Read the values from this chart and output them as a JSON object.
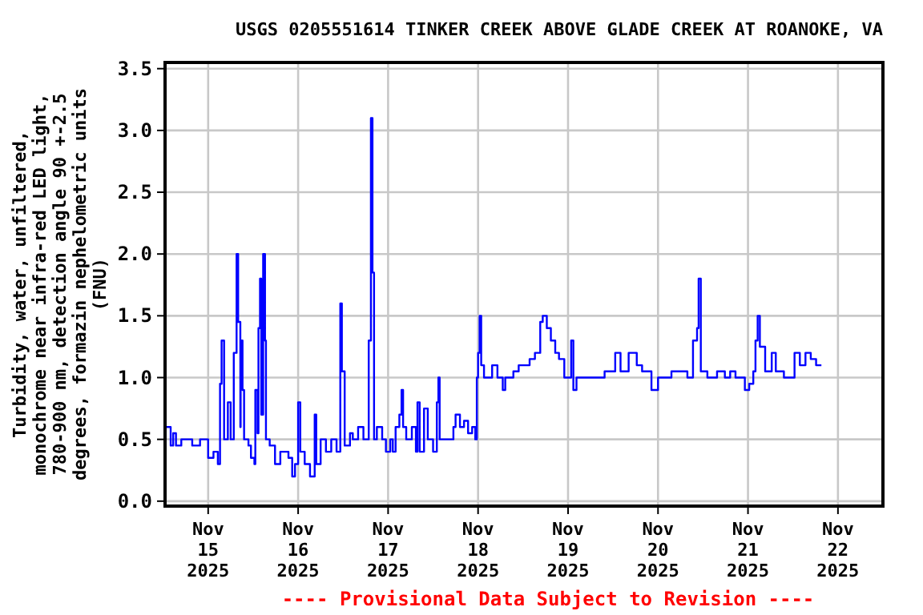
{
  "chart_data": {
    "type": "step",
    "title": "USGS 0205551614 TINKER CREEK ABOVE GLADE CREEK AT ROANOKE, VA",
    "ylabel": "Turbidity, water, unfiltered,\nmonochrome near infra-red LED light,\n780-900 nm, detection angle 90 +-2.5\ndegrees, formazin nephelometric units\n(FNU)",
    "annotations": [
      "---- Provisional Data Subject to Revision ----"
    ],
    "x": [
      "2025-11-14T12:50",
      "2025-11-14T14:00",
      "2025-11-14T14:40",
      "2025-11-14T15:25",
      "2025-11-14T16:50",
      "2025-11-14T19:45",
      "2025-11-14T21:50",
      "2025-11-15T00:00",
      "2025-11-15T01:25",
      "2025-11-15T02:35",
      "2025-11-15T03:10",
      "2025-11-15T03:35",
      "2025-11-15T04:15",
      "2025-11-15T05:15",
      "2025-11-15T06:00",
      "2025-11-15T06:50",
      "2025-11-15T07:35",
      "2025-11-15T08:00",
      "2025-11-15T08:35",
      "2025-11-15T08:40",
      "2025-11-15T09:10",
      "2025-11-15T09:35",
      "2025-11-15T10:45",
      "2025-11-15T11:25",
      "2025-11-15T12:20",
      "2025-11-15T12:35",
      "2025-11-15T13:10",
      "2025-11-15T13:25",
      "2025-11-15T13:50",
      "2025-11-15T14:10",
      "2025-11-15T14:40",
      "2025-11-15T15:10",
      "2025-11-15T15:25",
      "2025-11-15T16:25",
      "2025-11-15T17:50",
      "2025-11-15T19:15",
      "2025-11-15T21:25",
      "2025-11-15T22:25",
      "2025-11-15T23:10",
      "2025-11-16T00:00",
      "2025-11-16T00:35",
      "2025-11-16T01:45",
      "2025-11-16T03:10",
      "2025-11-16T04:25",
      "2025-11-16T04:50",
      "2025-11-16T06:00",
      "2025-11-16T07:25",
      "2025-11-16T08:50",
      "2025-11-16T10:15",
      "2025-11-16T11:15",
      "2025-11-16T11:40",
      "2025-11-16T12:25",
      "2025-11-16T13:50",
      "2025-11-16T14:35",
      "2025-11-16T16:00",
      "2025-11-16T17:25",
      "2025-11-16T18:50",
      "2025-11-16T19:25",
      "2025-11-16T19:50",
      "2025-11-16T20:15",
      "2025-11-16T21:00",
      "2025-11-16T22:25",
      "2025-11-16T23:25",
      "2025-11-17T00:35",
      "2025-11-17T01:15",
      "2025-11-17T02:00",
      "2025-11-17T03:00",
      "2025-11-17T03:35",
      "2025-11-17T04:00",
      "2025-11-17T04:50",
      "2025-11-17T06:20",
      "2025-11-17T07:25",
      "2025-11-17T07:50",
      "2025-11-17T08:25",
      "2025-11-17T09:35",
      "2025-11-17T10:35",
      "2025-11-17T12:00",
      "2025-11-17T13:00",
      "2025-11-17T13:25",
      "2025-11-17T13:45",
      "2025-11-17T16:15",
      "2025-11-17T17:25",
      "2025-11-17T18:00",
      "2025-11-17T19:10",
      "2025-11-17T20:15",
      "2025-11-17T21:20",
      "2025-11-17T22:25",
      "2025-11-17T23:15",
      "2025-11-17T23:40",
      "2025-11-18T00:00",
      "2025-11-18T00:25",
      "2025-11-18T00:50",
      "2025-11-18T01:35",
      "2025-11-18T03:45",
      "2025-11-18T05:10",
      "2025-11-18T06:35",
      "2025-11-18T07:15",
      "2025-11-18T09:25",
      "2025-11-18T10:50",
      "2025-11-18T13:00",
      "2025-11-18T13:45",
      "2025-11-18T15:10",
      "2025-11-18T16:35",
      "2025-11-18T17:15",
      "2025-11-18T18:20",
      "2025-11-18T19:25",
      "2025-11-18T20:35",
      "2025-11-18T21:35",
      "2025-11-18T23:00",
      "2025-11-19T00:50",
      "2025-11-19T01:25",
      "2025-11-19T02:15",
      "2025-11-19T05:25",
      "2025-11-19T09:45",
      "2025-11-19T12:35",
      "2025-11-19T14:00",
      "2025-11-19T16:10",
      "2025-11-19T18:20",
      "2025-11-19T19:45",
      "2025-11-19T22:15",
      "2025-11-20T00:00",
      "2025-11-20T03:35",
      "2025-11-20T05:40",
      "2025-11-20T07:50",
      "2025-11-20T09:20",
      "2025-11-20T10:25",
      "2025-11-20T10:50",
      "2025-11-20T11:25",
      "2025-11-20T13:10",
      "2025-11-20T15:45",
      "2025-11-20T17:50",
      "2025-11-20T19:15",
      "2025-11-20T20:40",
      "2025-11-20T23:10",
      "2025-11-21T00:20",
      "2025-11-21T01:25",
      "2025-11-21T02:00",
      "2025-11-21T02:35",
      "2025-11-21T03:10",
      "2025-11-21T04:35",
      "2025-11-21T06:20",
      "2025-11-21T07:25",
      "2025-11-21T09:35",
      "2025-11-21T12:25",
      "2025-11-21T13:50",
      "2025-11-21T15:20",
      "2025-11-21T16:45",
      "2025-11-21T18:10",
      "2025-11-21T19:35"
    ],
    "series": [
      {
        "color": "#0000ff",
        "values": [
          0.6,
          0.45,
          0.55,
          0.45,
          0.5,
          0.45,
          0.5,
          0.35,
          0.4,
          0.3,
          0.95,
          1.3,
          0.5,
          0.8,
          0.5,
          1.2,
          2.0,
          1.45,
          0.6,
          1.3,
          0.9,
          0.5,
          0.45,
          0.35,
          0.3,
          0.9,
          0.55,
          1.4,
          1.8,
          0.7,
          2.0,
          1.3,
          0.5,
          0.45,
          0.3,
          0.4,
          0.35,
          0.2,
          0.3,
          0.8,
          0.4,
          0.3,
          0.2,
          0.7,
          0.3,
          0.5,
          0.4,
          0.5,
          0.4,
          1.6,
          1.05,
          0.45,
          0.55,
          0.5,
          0.6,
          0.5,
          1.3,
          3.1,
          1.85,
          0.5,
          0.6,
          0.5,
          0.4,
          0.5,
          0.4,
          0.6,
          0.7,
          0.9,
          0.6,
          0.5,
          0.6,
          0.4,
          0.8,
          0.4,
          0.75,
          0.5,
          0.4,
          0.8,
          1.0,
          0.5,
          0.5,
          0.6,
          0.7,
          0.6,
          0.65,
          0.55,
          0.6,
          0.5,
          1.0,
          1.2,
          1.5,
          1.1,
          1.0,
          1.1,
          1.0,
          0.9,
          1.0,
          1.05,
          1.1,
          1.1,
          1.15,
          1.2,
          1.45,
          1.5,
          1.4,
          1.3,
          1.2,
          1.15,
          1.0,
          1.3,
          0.9,
          1.0,
          1.0,
          1.05,
          1.2,
          1.05,
          1.2,
          1.1,
          1.05,
          0.9,
          1.0,
          1.05,
          1.05,
          1.0,
          1.3,
          1.4,
          1.8,
          1.05,
          1.0,
          1.05,
          1.0,
          1.05,
          1.0,
          0.9,
          0.95,
          1.05,
          1.3,
          1.5,
          1.25,
          1.05,
          1.2,
          1.05,
          1.0,
          1.2,
          1.1,
          1.2,
          1.15,
          1.1,
          1.1
        ]
      }
    ],
    "xlim": [
      "2025-11-14T12:30",
      "2025-11-22T12:00"
    ],
    "xticks": [
      {
        "value": "2025-11-15",
        "label": "Nov\n15\n2025"
      },
      {
        "value": "2025-11-16",
        "label": "Nov\n16\n2025"
      },
      {
        "value": "2025-11-17",
        "label": "Nov\n17\n2025"
      },
      {
        "value": "2025-11-18",
        "label": "Nov\n18\n2025"
      },
      {
        "value": "2025-11-19",
        "label": "Nov\n19\n2025"
      },
      {
        "value": "2025-11-20",
        "label": "Nov\n20\n2025"
      },
      {
        "value": "2025-11-21",
        "label": "Nov\n21\n2025"
      },
      {
        "value": "2025-11-22",
        "label": "Nov\n22\n2025"
      }
    ],
    "ylim": [
      -0.04,
      3.55
    ],
    "yticks": [
      {
        "value": 0,
        "label": "0.0"
      },
      {
        "value": 0.5,
        "label": "0.5"
      },
      {
        "value": 1,
        "label": "1.0"
      },
      {
        "value": 1.5,
        "label": "1.5"
      },
      {
        "value": 2,
        "label": "2.0"
      },
      {
        "value": 2.5,
        "label": "2.5"
      },
      {
        "value": 3,
        "label": "3.0"
      },
      {
        "value": 3.5,
        "label": "3.5"
      }
    ],
    "grid": true
  }
}
